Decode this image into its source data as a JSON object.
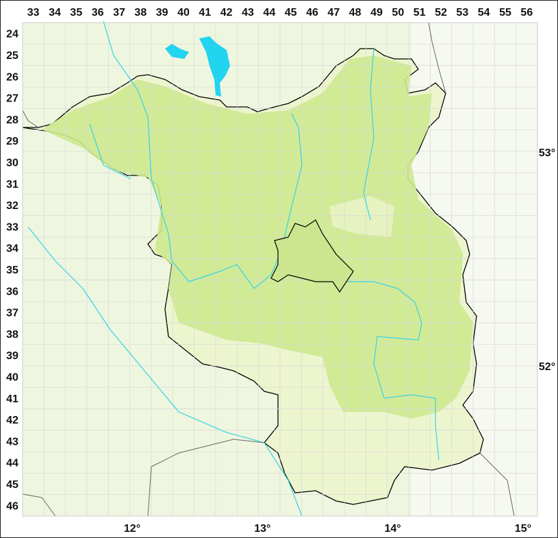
{
  "map": {
    "grid_columns": [
      "33",
      "34",
      "35",
      "36",
      "37",
      "38",
      "39",
      "40",
      "41",
      "42",
      "43",
      "44",
      "45",
      "46",
      "47",
      "48",
      "49",
      "50",
      "51",
      "52",
      "53",
      "54",
      "55",
      "56"
    ],
    "grid_rows": [
      "24",
      "25",
      "26",
      "27",
      "28",
      "29",
      "30",
      "31",
      "32",
      "33",
      "34",
      "35",
      "36",
      "37",
      "38",
      "39",
      "40",
      "41",
      "42",
      "43",
      "44",
      "45",
      "46"
    ],
    "latitude_labels": [
      {
        "label": "53°",
        "value": 53
      },
      {
        "label": "52°",
        "value": 52
      }
    ],
    "longitude_labels": [
      {
        "label": "12°",
        "value": 12
      },
      {
        "label": "13°",
        "value": 13
      },
      {
        "label": "14°",
        "value": 14
      },
      {
        "label": "15°",
        "value": 15
      }
    ],
    "colors": {
      "background_land": "#eef6df",
      "region_fill": "#e8f3c4",
      "dense_vegetation": "#c9e88f",
      "border": "#000000",
      "rivers": "#35d3e6",
      "lakes": "#22d4f0",
      "grid": "#d8d8d8"
    }
  }
}
